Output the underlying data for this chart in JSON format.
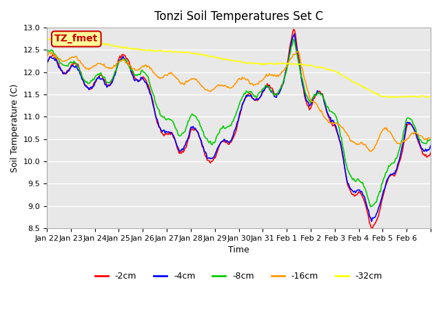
{
  "title": "Tonzi Soil Temperatures Set C",
  "xlabel": "Time",
  "ylabel": "Soil Temperature (C)",
  "ylim": [
    8.5,
    13.0
  ],
  "yticks": [
    8.5,
    9.0,
    9.5,
    10.0,
    10.5,
    11.0,
    11.5,
    12.0,
    12.5,
    13.0
  ],
  "line_colors": [
    "#ff0000",
    "#0000ff",
    "#00cc00",
    "#ff9900",
    "#ffff00"
  ],
  "line_labels": [
    "-2cm",
    "-4cm",
    "-8cm",
    "-16cm",
    "-32cm"
  ],
  "bg_color": "#e8e8e8",
  "plot_bg_color": "#e8e8e8",
  "annotation_text": "TZ_fmet",
  "annotation_bg": "#ffff99",
  "annotation_border": "#cc0000",
  "x_tick_labels": [
    "Jan 22",
    "Jan 23",
    "Jan 24",
    "Jan 25",
    "Jan 26",
    "Jan 27",
    "Jan 28",
    "Jan 29",
    "Jan 30",
    "Jan 31",
    "Feb 1",
    "Feb 2",
    "Feb 3",
    "Feb 4",
    "Feb 5",
    "Feb 6",
    ""
  ],
  "n_days": 16,
  "points_per_day": 24
}
